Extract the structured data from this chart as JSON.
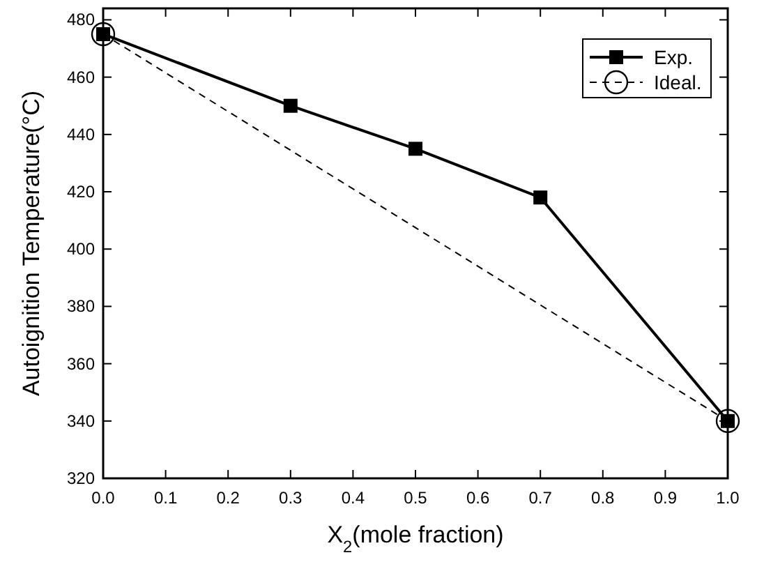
{
  "chart_data": {
    "type": "line",
    "xlabel": "X$_{2}$(mole fraction)",
    "ylabel": "Autoignition Temperature(°C)",
    "xlim": [
      0,
      1
    ],
    "xticks": [
      {
        "value": 0,
        "label": "0.0"
      },
      0.1,
      0.2,
      0.3,
      0.4,
      0.5,
      0.6,
      0.7,
      0.8,
      0.9,
      {
        "value": 1,
        "label": "1.0"
      }
    ],
    "ylim": [
      320,
      484
    ],
    "yticks": [
      320,
      340,
      360,
      380,
      400,
      420,
      440,
      460,
      480
    ],
    "grid": false,
    "legend": "top right",
    "series": [
      {
        "name": "Ideal.",
        "color": "#000000",
        "x": [
          0,
          1
        ],
        "values": [
          475,
          340
        ],
        "marker": "circle",
        "line_style": "dashed"
      },
      {
        "name": "Exp.",
        "color": "#000000",
        "x": [
          0,
          0.3,
          0.5,
          0.7,
          1
        ],
        "values": [
          475,
          450,
          435,
          418,
          340
        ],
        "marker": "square",
        "line_style": "solid"
      }
    ]
  }
}
